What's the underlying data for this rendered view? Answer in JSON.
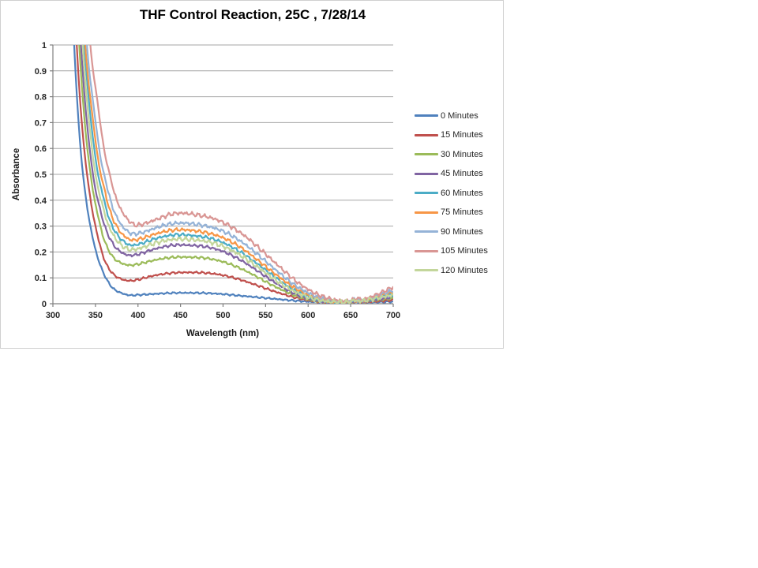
{
  "chart_data": {
    "type": "line",
    "title": "THF Control Reaction, 25C , 7/28/14",
    "xlabel": "Wavelength (nm)",
    "ylabel": "Absorbance",
    "x_range": [
      300,
      700
    ],
    "y_range": [
      0,
      1
    ],
    "x_ticks": [
      300,
      350,
      400,
      450,
      500,
      550,
      600,
      650,
      700
    ],
    "x_tick_labels": [
      "300",
      "350",
      "400",
      "450",
      "500",
      "550",
      "600",
      "650",
      "700"
    ],
    "y_ticks": [
      0,
      0.1,
      0.2,
      0.3,
      0.4,
      0.5,
      0.6,
      0.7,
      0.8,
      0.9,
      1
    ],
    "y_tick_labels": [
      "0",
      "0.1",
      "0.2",
      "0.3",
      "0.4",
      "0.5",
      "0.6",
      "0.7",
      "0.8",
      "0.9",
      "1"
    ],
    "grid": "horizontal",
    "legend_position": "right",
    "axis_color": "#808080",
    "grid_color": "#a6a6a6",
    "series": [
      {
        "name": "0 Minutes",
        "color": "#4f81bd",
        "points": [
          [
            318,
            1.6
          ],
          [
            325,
            1.0
          ],
          [
            332,
            0.62
          ],
          [
            340,
            0.38
          ],
          [
            350,
            0.21
          ],
          [
            360,
            0.115
          ],
          [
            370,
            0.062
          ],
          [
            380,
            0.042
          ],
          [
            390,
            0.033
          ],
          [
            400,
            0.034
          ],
          [
            415,
            0.037
          ],
          [
            430,
            0.04
          ],
          [
            445,
            0.042
          ],
          [
            460,
            0.042
          ],
          [
            480,
            0.041
          ],
          [
            500,
            0.037
          ],
          [
            520,
            0.031
          ],
          [
            540,
            0.025
          ],
          [
            560,
            0.019
          ],
          [
            580,
            0.013
          ],
          [
            600,
            0.008
          ],
          [
            620,
            0.006
          ],
          [
            640,
            0.005
          ],
          [
            648,
            0.005
          ],
          [
            654,
            0.008
          ],
          [
            660,
            0.005
          ],
          [
            680,
            0.006
          ],
          [
            700,
            0.008
          ]
        ]
      },
      {
        "name": "15 Minutes",
        "color": "#c0504d",
        "points": [
          [
            320,
            1.6
          ],
          [
            328,
            1.0
          ],
          [
            335,
            0.66
          ],
          [
            343,
            0.43
          ],
          [
            350,
            0.3
          ],
          [
            360,
            0.175
          ],
          [
            370,
            0.118
          ],
          [
            380,
            0.096
          ],
          [
            390,
            0.089
          ],
          [
            400,
            0.093
          ],
          [
            415,
            0.106
          ],
          [
            430,
            0.115
          ],
          [
            445,
            0.12
          ],
          [
            460,
            0.121
          ],
          [
            480,
            0.119
          ],
          [
            500,
            0.11
          ],
          [
            520,
            0.093
          ],
          [
            540,
            0.071
          ],
          [
            560,
            0.048
          ],
          [
            580,
            0.028
          ],
          [
            600,
            0.013
          ],
          [
            620,
            0.006
          ],
          [
            640,
            0.004
          ],
          [
            648,
            0.004
          ],
          [
            654,
            0.008
          ],
          [
            660,
            0.005
          ],
          [
            680,
            0.009
          ],
          [
            700,
            0.014
          ]
        ]
      },
      {
        "name": "30 Minutes",
        "color": "#9bbb59",
        "points": [
          [
            322,
            1.6
          ],
          [
            331,
            1.0
          ],
          [
            338,
            0.68
          ],
          [
            346,
            0.46
          ],
          [
            352,
            0.355
          ],
          [
            360,
            0.25
          ],
          [
            370,
            0.183
          ],
          [
            380,
            0.158
          ],
          [
            390,
            0.149
          ],
          [
            400,
            0.153
          ],
          [
            415,
            0.165
          ],
          [
            430,
            0.175
          ],
          [
            445,
            0.18
          ],
          [
            460,
            0.18
          ],
          [
            480,
            0.176
          ],
          [
            500,
            0.162
          ],
          [
            520,
            0.137
          ],
          [
            540,
            0.104
          ],
          [
            560,
            0.068
          ],
          [
            580,
            0.038
          ],
          [
            600,
            0.016
          ],
          [
            620,
            0.007
          ],
          [
            640,
            0.004
          ],
          [
            648,
            0.005
          ],
          [
            654,
            0.009
          ],
          [
            660,
            0.006
          ],
          [
            680,
            0.013
          ],
          [
            700,
            0.021
          ]
        ]
      },
      {
        "name": "45 Minutes",
        "color": "#8064a2",
        "points": [
          [
            324,
            1.6
          ],
          [
            333,
            1.0
          ],
          [
            340,
            0.7
          ],
          [
            348,
            0.48
          ],
          [
            354,
            0.385
          ],
          [
            362,
            0.29
          ],
          [
            372,
            0.225
          ],
          [
            382,
            0.196
          ],
          [
            390,
            0.187
          ],
          [
            400,
            0.191
          ],
          [
            415,
            0.207
          ],
          [
            430,
            0.22
          ],
          [
            445,
            0.227
          ],
          [
            460,
            0.226
          ],
          [
            480,
            0.22
          ],
          [
            500,
            0.202
          ],
          [
            520,
            0.17
          ],
          [
            540,
            0.128
          ],
          [
            560,
            0.084
          ],
          [
            580,
            0.046
          ],
          [
            600,
            0.02
          ],
          [
            620,
            0.008
          ],
          [
            640,
            0.005
          ],
          [
            648,
            0.006
          ],
          [
            654,
            0.01
          ],
          [
            660,
            0.007
          ],
          [
            680,
            0.016
          ],
          [
            700,
            0.026
          ]
        ]
      },
      {
        "name": "60 Minutes",
        "color": "#4bacc6",
        "points": [
          [
            327,
            1.6
          ],
          [
            337,
            1.0
          ],
          [
            344,
            0.73
          ],
          [
            352,
            0.52
          ],
          [
            358,
            0.43
          ],
          [
            366,
            0.33
          ],
          [
            376,
            0.265
          ],
          [
            386,
            0.234
          ],
          [
            392,
            0.226
          ],
          [
            402,
            0.231
          ],
          [
            417,
            0.248
          ],
          [
            432,
            0.261
          ],
          [
            447,
            0.267
          ],
          [
            462,
            0.264
          ],
          [
            482,
            0.255
          ],
          [
            500,
            0.236
          ],
          [
            520,
            0.201
          ],
          [
            540,
            0.155
          ],
          [
            560,
            0.105
          ],
          [
            580,
            0.06
          ],
          [
            600,
            0.028
          ],
          [
            620,
            0.011
          ],
          [
            640,
            0.006
          ],
          [
            648,
            0.008
          ],
          [
            654,
            0.013
          ],
          [
            660,
            0.01
          ],
          [
            680,
            0.023
          ],
          [
            700,
            0.036
          ]
        ]
      },
      {
        "name": "75 Minutes",
        "color": "#f79646",
        "points": [
          [
            328,
            1.6
          ],
          [
            338,
            1.0
          ],
          [
            346,
            0.74
          ],
          [
            354,
            0.54
          ],
          [
            360,
            0.45
          ],
          [
            368,
            0.35
          ],
          [
            378,
            0.283
          ],
          [
            388,
            0.252
          ],
          [
            394,
            0.246
          ],
          [
            404,
            0.252
          ],
          [
            419,
            0.268
          ],
          [
            434,
            0.281
          ],
          [
            449,
            0.286
          ],
          [
            464,
            0.283
          ],
          [
            484,
            0.272
          ],
          [
            502,
            0.252
          ],
          [
            522,
            0.215
          ],
          [
            542,
            0.165
          ],
          [
            562,
            0.113
          ],
          [
            582,
            0.066
          ],
          [
            602,
            0.031
          ],
          [
            622,
            0.013
          ],
          [
            642,
            0.007
          ],
          [
            648,
            0.009
          ],
          [
            654,
            0.015
          ],
          [
            660,
            0.011
          ],
          [
            680,
            0.027
          ],
          [
            700,
            0.043
          ]
        ]
      },
      {
        "name": "90 Minutes",
        "color": "#95b3d7",
        "points": [
          [
            329,
            1.6
          ],
          [
            340,
            1.0
          ],
          [
            348,
            0.76
          ],
          [
            356,
            0.565
          ],
          [
            362,
            0.475
          ],
          [
            370,
            0.375
          ],
          [
            380,
            0.307
          ],
          [
            390,
            0.275
          ],
          [
            396,
            0.27
          ],
          [
            406,
            0.276
          ],
          [
            421,
            0.293
          ],
          [
            436,
            0.307
          ],
          [
            451,
            0.312
          ],
          [
            466,
            0.308
          ],
          [
            486,
            0.296
          ],
          [
            504,
            0.274
          ],
          [
            524,
            0.234
          ],
          [
            544,
            0.181
          ],
          [
            564,
            0.125
          ],
          [
            584,
            0.073
          ],
          [
            604,
            0.036
          ],
          [
            624,
            0.015
          ],
          [
            644,
            0.008
          ],
          [
            650,
            0.01
          ],
          [
            655,
            0.017
          ],
          [
            662,
            0.013
          ],
          [
            682,
            0.032
          ],
          [
            700,
            0.05
          ]
        ]
      },
      {
        "name": "105 Minutes",
        "color": "#d99694",
        "points": [
          [
            331,
            1.6
          ],
          [
            344,
            1.0
          ],
          [
            352,
            0.79
          ],
          [
            360,
            0.6
          ],
          [
            366,
            0.51
          ],
          [
            374,
            0.41
          ],
          [
            384,
            0.342
          ],
          [
            394,
            0.308
          ],
          [
            400,
            0.304
          ],
          [
            410,
            0.312
          ],
          [
            425,
            0.33
          ],
          [
            440,
            0.347
          ],
          [
            452,
            0.35
          ],
          [
            468,
            0.344
          ],
          [
            488,
            0.33
          ],
          [
            506,
            0.304
          ],
          [
            526,
            0.261
          ],
          [
            546,
            0.204
          ],
          [
            566,
            0.144
          ],
          [
            586,
            0.087
          ],
          [
            606,
            0.044
          ],
          [
            626,
            0.019
          ],
          [
            646,
            0.01
          ],
          [
            652,
            0.013
          ],
          [
            657,
            0.021
          ],
          [
            664,
            0.016
          ],
          [
            684,
            0.04
          ],
          [
            700,
            0.063
          ]
        ]
      },
      {
        "name": "120 Minutes",
        "color": "#c3d69b",
        "points": [
          [
            326,
            1.6
          ],
          [
            335,
            1.0
          ],
          [
            342,
            0.72
          ],
          [
            350,
            0.5
          ],
          [
            356,
            0.41
          ],
          [
            364,
            0.315
          ],
          [
            374,
            0.25
          ],
          [
            384,
            0.218
          ],
          [
            392,
            0.209
          ],
          [
            402,
            0.214
          ],
          [
            417,
            0.231
          ],
          [
            432,
            0.244
          ],
          [
            447,
            0.25
          ],
          [
            462,
            0.248
          ],
          [
            482,
            0.24
          ],
          [
            500,
            0.222
          ],
          [
            520,
            0.188
          ],
          [
            540,
            0.143
          ],
          [
            560,
            0.096
          ],
          [
            580,
            0.054
          ],
          [
            600,
            0.025
          ],
          [
            620,
            0.01
          ],
          [
            640,
            0.006
          ],
          [
            648,
            0.008
          ],
          [
            654,
            0.013
          ],
          [
            660,
            0.01
          ],
          [
            680,
            0.021
          ],
          [
            700,
            0.033
          ]
        ]
      }
    ]
  }
}
